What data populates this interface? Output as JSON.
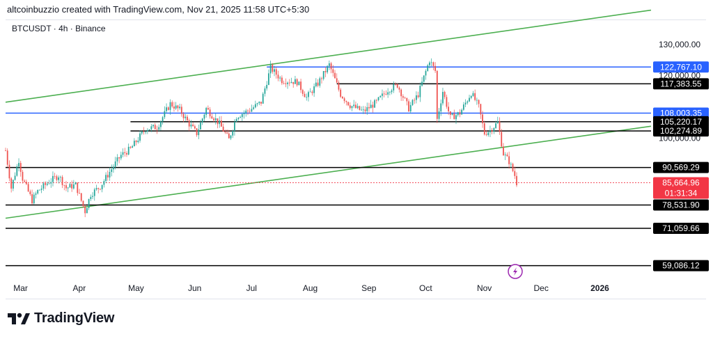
{
  "header": {
    "credit": "altcoinbuzzio created with TradingView.com, Nov 21, 2025 11:58 UTC+5:30"
  },
  "symbol_line": "BTCUSDT · 4h · Binance",
  "brand": {
    "name": "TradingView",
    "logo_icon": "tradingview-logo-icon"
  },
  "chart_data": {
    "type": "candlestick",
    "title": "BTCUSDT · 4h · Binance",
    "ylim": [
      55000,
      138000
    ],
    "y_ticks": [
      "130,000.00",
      "120,000.00",
      "100,000.00"
    ],
    "x_ticks": [
      "Mar",
      "Apr",
      "May",
      "Jun",
      "Jul",
      "Aug",
      "Sep",
      "Oct",
      "Nov",
      "Dec",
      "2026"
    ],
    "x_range": [
      "2025-02-24",
      "2026-01-31"
    ],
    "colors": {
      "up": "#26a69a",
      "down": "#ef5350",
      "support": "#000000",
      "highlight": "#2962ff",
      "channel": "#4caf50",
      "last_price": "#f23645"
    },
    "horizontal_levels": [
      {
        "label": "122,767.10",
        "value": 122767.1,
        "color": "#2962ff",
        "start": "2025-07-12"
      },
      {
        "label": "117,383.55",
        "value": 117383.55,
        "color": "#000000",
        "start": "2025-08-18"
      },
      {
        "label": "108,003.35",
        "value": 108003.35,
        "color": "#2962ff",
        "start": "2025-02-24"
      },
      {
        "label": "105,220.17",
        "value": 105220.17,
        "color": "#000000",
        "start": "2025-05-01"
      },
      {
        "label": "102,274.89",
        "value": 102274.89,
        "color": "#000000",
        "start": "2025-05-01"
      },
      {
        "label": "90,569.29",
        "value": 90569.29,
        "color": "#000000",
        "start": "2025-02-24"
      },
      {
        "label": "78,531.90",
        "value": 78531.9,
        "color": "#000000",
        "start": "2025-02-24"
      },
      {
        "label": "71,059.66",
        "value": 71059.66,
        "color": "#000000",
        "start": "2025-02-24"
      },
      {
        "label": "59,086.12",
        "value": 59086.12,
        "color": "#000000",
        "start": "2025-02-24"
      }
    ],
    "last_price": {
      "label": "85,664.96",
      "countdown": "01:31:34",
      "value": 85664.96
    },
    "channel_lines": [
      {
        "name": "upper",
        "points": [
          [
            "2025-02-24",
            111500
          ],
          [
            "2026-01-31",
            141000
          ]
        ]
      },
      {
        "name": "lower",
        "points": [
          [
            "2025-02-24",
            74300
          ],
          [
            "2026-01-31",
            103800
          ]
        ]
      }
    ],
    "price_path": [
      [
        "2025-02-24",
        96000
      ],
      [
        "2025-02-27",
        84000
      ],
      [
        "2025-03-03",
        93000
      ],
      [
        "2025-03-05",
        87000
      ],
      [
        "2025-03-10",
        80000
      ],
      [
        "2025-03-13",
        83000
      ],
      [
        "2025-03-19",
        86000
      ],
      [
        "2025-03-24",
        88000
      ],
      [
        "2025-03-28",
        84000
      ],
      [
        "2025-04-02",
        85000
      ],
      [
        "2025-04-07",
        76500
      ],
      [
        "2025-04-10",
        82000
      ],
      [
        "2025-04-15",
        84500
      ],
      [
        "2025-04-22",
        91000
      ],
      [
        "2025-04-26",
        94500
      ],
      [
        "2025-05-01",
        96500
      ],
      [
        "2025-05-09",
        103000
      ],
      [
        "2025-05-15",
        103500
      ],
      [
        "2025-05-22",
        111000
      ],
      [
        "2025-05-27",
        109000
      ],
      [
        "2025-06-01",
        104500
      ],
      [
        "2025-06-05",
        101500
      ],
      [
        "2025-06-10",
        109500
      ],
      [
        "2025-06-17",
        104500
      ],
      [
        "2025-06-22",
        99500
      ],
      [
        "2025-06-26",
        107000
      ],
      [
        "2025-07-03",
        109000
      ],
      [
        "2025-07-09",
        111500
      ],
      [
        "2025-07-14",
        122500
      ],
      [
        "2025-07-20",
        118500
      ],
      [
        "2025-07-28",
        118000
      ],
      [
        "2025-08-02",
        113000
      ],
      [
        "2025-08-08",
        117500
      ],
      [
        "2025-08-14",
        123500
      ],
      [
        "2025-08-20",
        114000
      ],
      [
        "2025-08-25",
        110500
      ],
      [
        "2025-09-01",
        108500
      ],
      [
        "2025-09-08",
        111500
      ],
      [
        "2025-09-14",
        115500
      ],
      [
        "2025-09-19",
        117000
      ],
      [
        "2025-09-25",
        109500
      ],
      [
        "2025-09-30",
        114000
      ],
      [
        "2025-10-06",
        125000
      ],
      [
        "2025-10-09",
        121500
      ],
      [
        "2025-10-10",
        106000
      ],
      [
        "2025-10-13",
        115000
      ],
      [
        "2025-10-17",
        106500
      ],
      [
        "2025-10-22",
        108000
      ],
      [
        "2025-10-28",
        114500
      ],
      [
        "2025-11-01",
        110000
      ],
      [
        "2025-11-04",
        101500
      ],
      [
        "2025-11-07",
        102500
      ],
      [
        "2025-11-11",
        105000
      ],
      [
        "2025-11-14",
        95000
      ],
      [
        "2025-11-17",
        92500
      ],
      [
        "2025-11-20",
        88000
      ],
      [
        "2025-11-21",
        85665
      ]
    ]
  }
}
